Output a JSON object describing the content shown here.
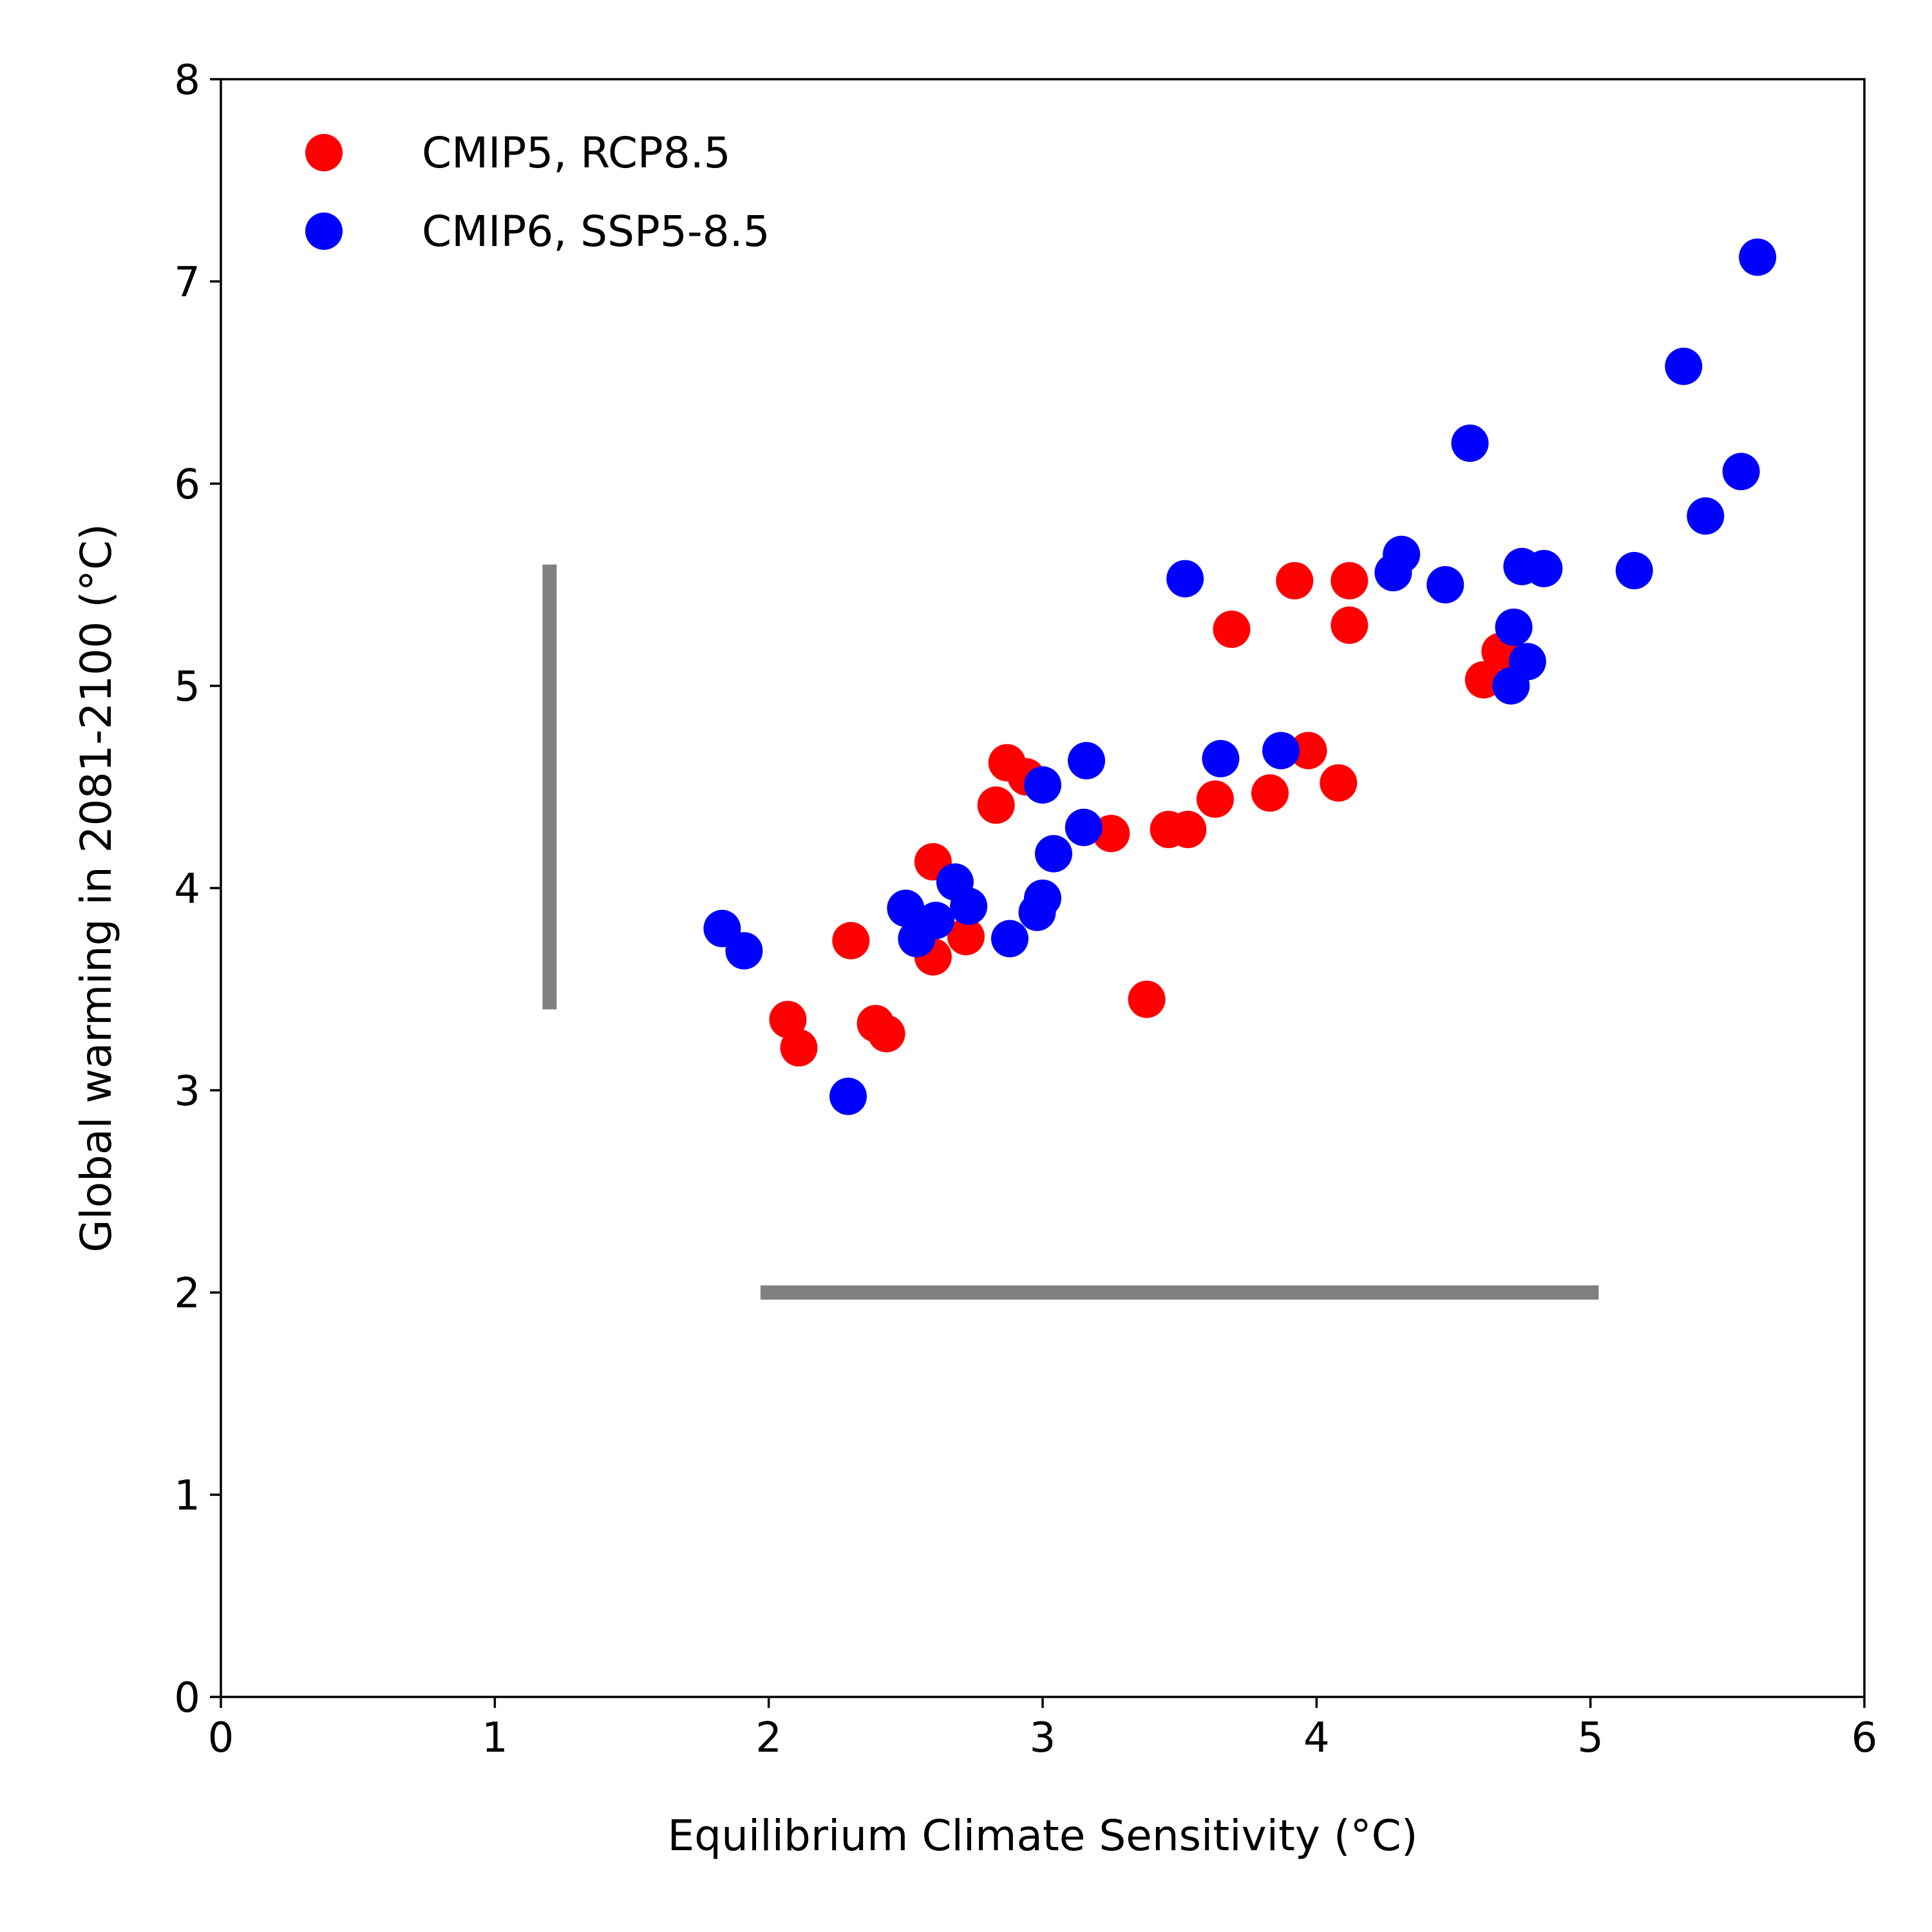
{
  "chart_data": {
    "type": "scatter",
    "xlabel": "Equilibrium Climate Sensitivity (°C)",
    "ylabel": "Global warming in 2081-2100 (°C)",
    "xlim": [
      0,
      6
    ],
    "ylim": [
      0,
      8
    ],
    "xticks": [
      "0",
      "1",
      "2",
      "3",
      "4",
      "5",
      "6"
    ],
    "yticks": [
      "0",
      "1",
      "2",
      "3",
      "4",
      "5",
      "6",
      "7",
      "8"
    ],
    "grid": false,
    "legend_position": "top-left",
    "series": [
      {
        "name": "CMIP5, RCP8.5",
        "color": "#ff0000",
        "x": [
          2.07,
          2.11,
          2.3,
          2.39,
          2.43,
          2.6,
          2.6,
          2.72,
          2.83,
          2.87,
          2.94,
          3.25,
          3.38,
          3.46,
          3.53,
          3.63,
          3.69,
          3.83,
          3.92,
          3.97,
          4.08,
          4.12,
          4.12,
          4.61,
          4.67
        ],
        "y": [
          3.35,
          3.21,
          3.74,
          3.33,
          3.28,
          4.13,
          3.66,
          3.76,
          4.41,
          4.62,
          4.55,
          4.27,
          3.45,
          4.29,
          4.29,
          4.44,
          5.28,
          4.47,
          5.52,
          4.68,
          4.52,
          5.52,
          5.3,
          5.03,
          5.17
        ]
      },
      {
        "name": "CMIP6, SSP5-8.5",
        "color": "#0000ff",
        "x": [
          1.83,
          1.91,
          2.29,
          2.5,
          2.54,
          2.61,
          2.68,
          2.73,
          2.88,
          2.98,
          3.0,
          3.0,
          3.04,
          3.15,
          3.16,
          3.52,
          3.65,
          3.87,
          4.28,
          4.31,
          4.47,
          4.56,
          4.71,
          4.72,
          4.75,
          4.77,
          4.83,
          5.16,
          5.34,
          5.42,
          5.55,
          5.61
        ],
        "y": [
          3.8,
          3.69,
          2.97,
          3.9,
          3.75,
          3.84,
          4.03,
          3.91,
          3.75,
          3.88,
          3.95,
          4.51,
          4.17,
          4.3,
          4.63,
          5.53,
          4.64,
          4.68,
          5.56,
          5.65,
          5.5,
          6.2,
          5.0,
          5.29,
          5.59,
          5.12,
          5.58,
          5.57,
          6.58,
          5.84,
          6.06,
          7.12
        ]
      }
    ],
    "range_bars": [
      {
        "orientation": "vertical",
        "x": 1.2,
        "y_from": 3.4,
        "y_to": 5.6,
        "color": "#808080"
      },
      {
        "orientation": "horizontal",
        "y": 2.0,
        "x_from": 1.97,
        "x_to": 5.03,
        "color": "#808080"
      }
    ]
  }
}
